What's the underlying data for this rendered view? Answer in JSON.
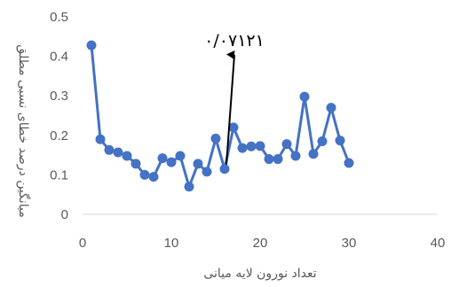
{
  "chart_data": {
    "type": "line",
    "xlabel": "تعداد نورون لایه میانی",
    "ylabel": "میانگین درصد خطای نسبی مطلق",
    "xlim": [
      0,
      40
    ],
    "ylim": [
      0,
      0.5
    ],
    "x_ticks": [
      "0",
      "10",
      "20",
      "30",
      "40"
    ],
    "y_ticks": [
      "0",
      "0.1",
      "0.2",
      "0.3",
      "0.4",
      "0.5"
    ],
    "grid": false,
    "series": [
      {
        "color": "#4472C4",
        "marker": "circle",
        "x": [
          1,
          2,
          3,
          4,
          5,
          6,
          7,
          8,
          9,
          10,
          11,
          12,
          13,
          14,
          15,
          16,
          17,
          18,
          19,
          20,
          21,
          22,
          23,
          24,
          25,
          26,
          27,
          28,
          29,
          30
        ],
        "y": [
          0.428,
          0.19,
          0.163,
          0.157,
          0.148,
          0.128,
          0.1,
          0.095,
          0.142,
          0.132,
          0.148,
          0.07,
          0.128,
          0.108,
          0.192,
          0.115,
          0.22,
          0.168,
          0.172,
          0.173,
          0.14,
          0.14,
          0.178,
          0.148,
          0.298,
          0.153,
          0.185,
          0.27,
          0.187,
          0.13
        ]
      }
    ],
    "annotation": {
      "text": "۰/۰۷۱۲۱",
      "x": 16,
      "y": 0.115,
      "arrow": true
    }
  }
}
